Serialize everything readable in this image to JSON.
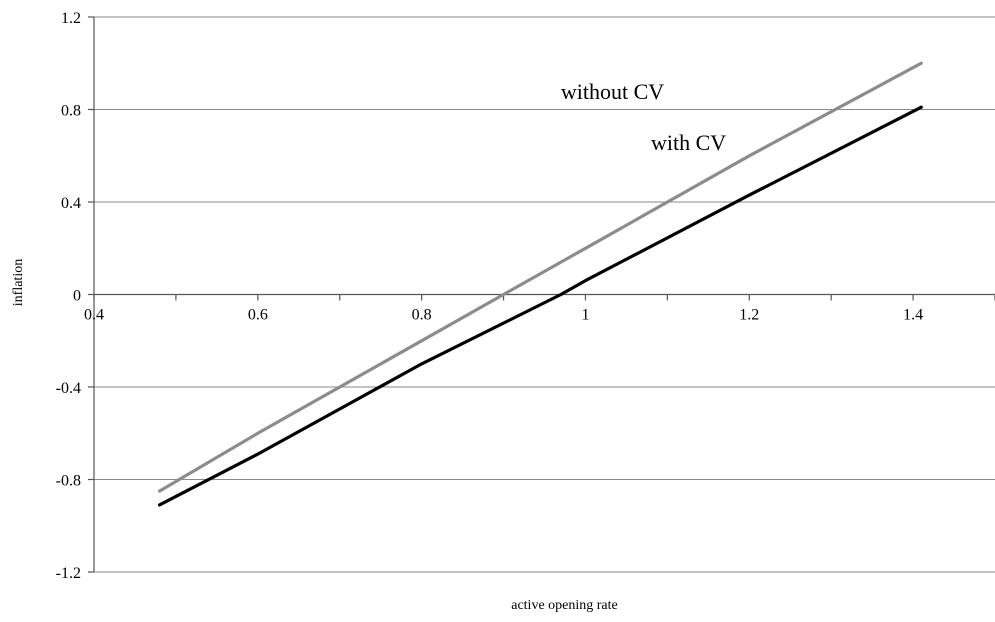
{
  "chart_data": {
    "type": "line",
    "title": "",
    "xlabel": "active opening rate",
    "ylabel": "inflation",
    "xlim": [
      0.4,
      1.5
    ],
    "ylim": [
      -1.2,
      1.2
    ],
    "xticks": [
      0.4,
      0.6,
      0.8,
      1,
      1.2,
      1.4
    ],
    "xtick_labels": [
      "0.4",
      "0.6",
      "0.8",
      "1",
      "1.2",
      "1.4"
    ],
    "yticks": [
      -1.2,
      -0.8,
      -0.4,
      0,
      0.4,
      0.8,
      1.2
    ],
    "ytick_labels": [
      "-1.2",
      "-0.8",
      "-0.4",
      "0",
      "0.4",
      "0.8",
      "1.2"
    ],
    "grid": "horizontal",
    "legend": "none",
    "annotations": [
      {
        "text": "without CV",
        "series": 0
      },
      {
        "text": "with CV",
        "series": 1
      }
    ],
    "series": [
      {
        "name": "without CV",
        "color": "#8c8c8c",
        "x": [
          0.48,
          0.6,
          0.8,
          0.9,
          1.0,
          1.2,
          1.41
        ],
        "y": [
          -0.85,
          -0.6,
          -0.2,
          0.0,
          0.2,
          0.6,
          1.0
        ]
      },
      {
        "name": "with CV",
        "color": "#000000",
        "x": [
          0.48,
          0.6,
          0.8,
          0.97,
          1.0,
          1.2,
          1.41
        ],
        "y": [
          -0.91,
          -0.69,
          -0.3,
          0.0,
          0.06,
          0.43,
          0.81
        ]
      }
    ]
  }
}
